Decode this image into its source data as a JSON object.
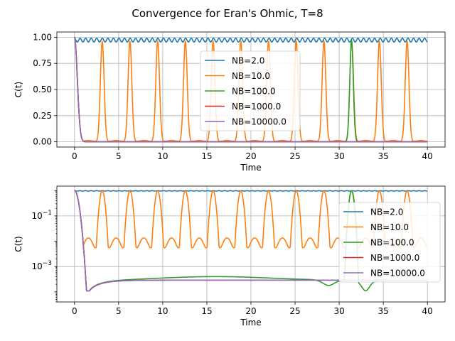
{
  "figure": {
    "suptitle": "Convergence for Eran's Ohmic, T=8"
  },
  "colors": {
    "NB=2.0": "#1f77b4",
    "NB=10.0": "#ff7f0e",
    "NB=100.0": "#2ca02c",
    "NB=1000.0": "#d62728",
    "NB=10000.0": "#9467bd",
    "grid": "#b0b0b0"
  },
  "chart_data": [
    {
      "type": "line",
      "scale": "linear",
      "xlabel": "Time",
      "ylabel": "C(t)",
      "xlim": [
        -2,
        42
      ],
      "ylim": [
        -0.05,
        1.05
      ],
      "xticks": [
        0,
        5,
        10,
        15,
        20,
        25,
        30,
        35,
        40
      ],
      "xtick_labels": [
        "0",
        "5",
        "10",
        "15",
        "20",
        "25",
        "30",
        "35",
        "40"
      ],
      "yticks": [
        0.0,
        0.25,
        0.5,
        0.75,
        1.0
      ],
      "ytick_labels": [
        "0.00",
        "0.25",
        "0.50",
        "0.75",
        "1.00"
      ],
      "grid": true,
      "legend_loc": "center",
      "series": [
        {
          "name": "NB=2.0",
          "shape": "oscillating plateau near 0.97 with period about 0.63 (amplitude ~0.02)"
        },
        {
          "name": "NB=10.0",
          "shape": "revival peaks near 0.96 every ~3.14 (t=3.14 to 37.7), baseline ~0.01"
        },
        {
          "name": "NB=100.0",
          "shape": "fast decay to ~0, single revival peak near 0.97 at t≈31.4"
        },
        {
          "name": "NB=1000.0",
          "shape": "fast decay from 1 to ~0 by t≈1.5"
        },
        {
          "name": "NB=10000.0",
          "shape": "fast decay from 1 to ~0 by t≈1.5"
        }
      ]
    },
    {
      "type": "line",
      "scale": "log",
      "xlabel": "Time",
      "ylabel": "C(t)",
      "xlim": [
        -2,
        42
      ],
      "ylim": [
        4e-05,
        1.5
      ],
      "xticks": [
        0,
        5,
        10,
        15,
        20,
        25,
        30,
        35,
        40
      ],
      "xtick_labels": [
        "0",
        "5",
        "10",
        "15",
        "20",
        "25",
        "30",
        "35",
        "40"
      ],
      "yticks_exp": [
        -1,
        -3
      ],
      "grid": true,
      "legend_loc": "right",
      "series": [
        {
          "name": "NB=2.0",
          "shape": "flat near 0.97"
        },
        {
          "name": "NB=10.0",
          "shape": "oscillates between ~0.009 and ~0.96 with period ~3.14"
        },
        {
          "name": "NB=100.0",
          "shape": "min ~1.1e-4 at t≈1.7, hump ~4e-4 at t≈16, dip near t≈29, peak at t≈31.4, dip ~1e-4 at t≈33"
        },
        {
          "name": "NB=1000.0",
          "shape": "min ~1.1e-4 at t≈1.7 then flat ~2.9e-4"
        },
        {
          "name": "NB=10000.0",
          "shape": "min ~1.1e-4 at t≈1.7 then flat ~2.9e-4"
        }
      ]
    }
  ]
}
